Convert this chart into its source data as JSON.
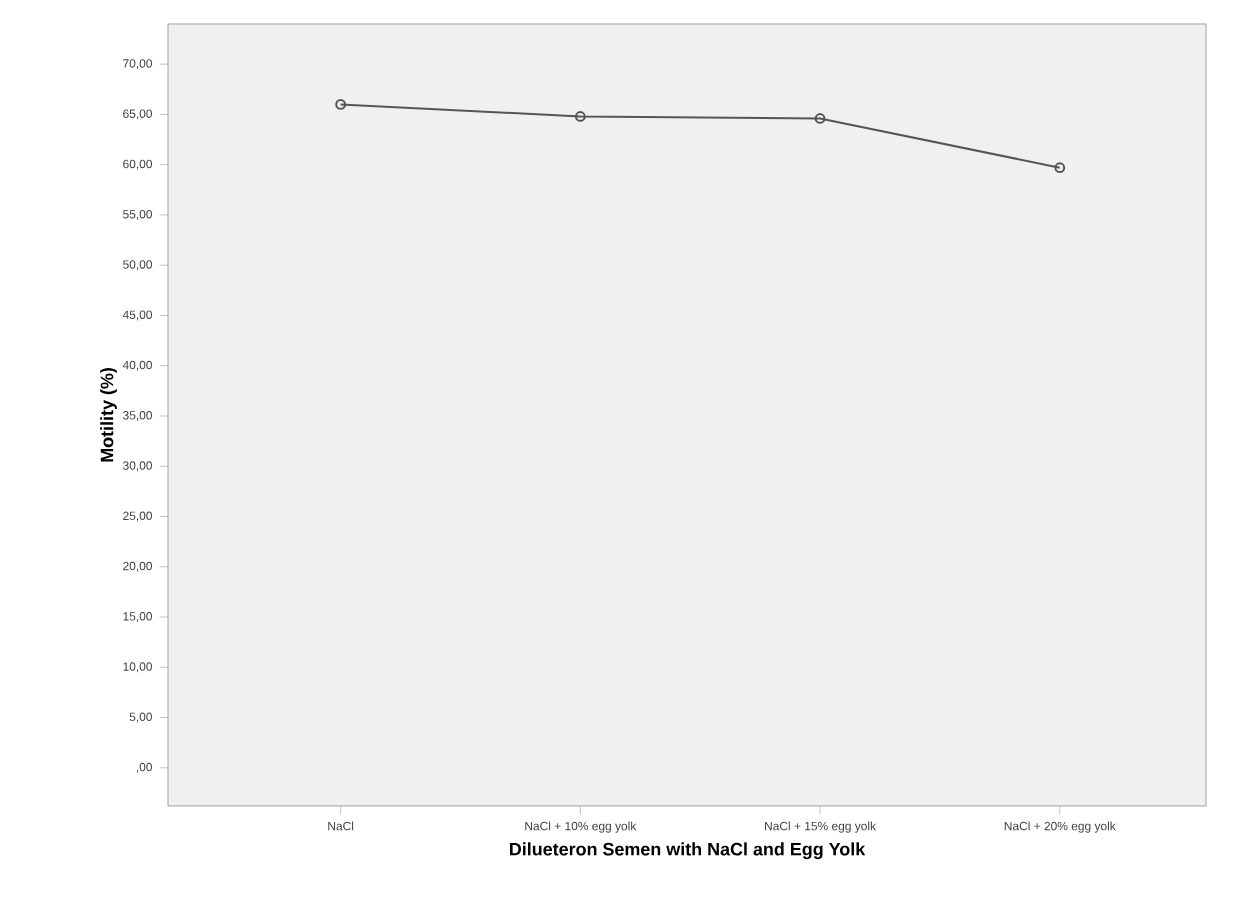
{
  "chart_data": {
    "type": "line",
    "xlabel": "Dilueteron Semen with NaCl and Egg Yolk",
    "ylabel": "Motility (%)",
    "categories": [
      "NaCl",
      "NaCl + 10% egg yolk",
      "NaCl + 15% egg yolk",
      "NaCl + 20% egg yolk"
    ],
    "series": [
      {
        "color": "#555555",
        "values": [
          66.0,
          64.8,
          64.6,
          59.7
        ]
      }
    ],
    "ylim": [
      -3.8,
      74
    ],
    "yticks": [
      {
        "value": 0,
        "label": ",00"
      },
      {
        "value": 5,
        "label": "5,00"
      },
      {
        "value": 10,
        "label": "10,00"
      },
      {
        "value": 15,
        "label": "15,00"
      },
      {
        "value": 20,
        "label": "20,00"
      },
      {
        "value": 25,
        "label": "25,00"
      },
      {
        "value": 30,
        "label": "30,00"
      },
      {
        "value": 35,
        "label": "35,00"
      },
      {
        "value": 40,
        "label": "40,00"
      },
      {
        "value": 45,
        "label": "45,00"
      },
      {
        "value": 50,
        "label": "50,00"
      },
      {
        "value": 55,
        "label": "55,00"
      },
      {
        "value": 60,
        "label": "60,00"
      },
      {
        "value": 65,
        "label": "65,00"
      },
      {
        "value": 70,
        "label": "70,00"
      }
    ],
    "marker": "circle",
    "line_style": "solid"
  }
}
